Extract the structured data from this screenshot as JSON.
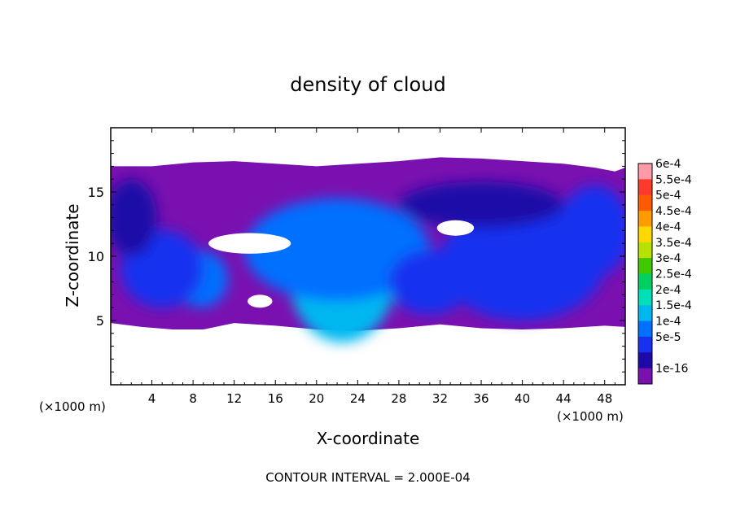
{
  "chart_data": {
    "type": "heatmap",
    "title": "density of cloud",
    "xlabel": "X-coordinate",
    "ylabel": "Z-coordinate",
    "x_unit": "(×1000 m)",
    "x_unit_right": "(×1000 m)",
    "xlim": [
      0,
      50
    ],
    "ylim": [
      0,
      20
    ],
    "x_ticks": [
      4,
      8,
      12,
      16,
      20,
      24,
      28,
      32,
      36,
      40,
      44,
      48
    ],
    "y_ticks": [
      5,
      10,
      15
    ],
    "footer": "CONTOUR INTERVAL = 2.000E-04",
    "colorbar": {
      "labels": [
        "6e-4",
        "5.5e-4",
        "5e-4",
        "4.5e-4",
        "4e-4",
        "3.5e-4",
        "3e-4",
        "2.5e-4",
        "2e-4",
        "1.5e-4",
        "1e-4",
        "5e-5",
        "1e-16"
      ],
      "colors": [
        "#ff9aa6",
        "#ff3a2a",
        "#ff5a00",
        "#ff9a00",
        "#ffd800",
        "#b8e000",
        "#40c800",
        "#00d060",
        "#00e0b8",
        "#00b8f0",
        "#0070ff",
        "#1830f0",
        "#1c0aa8",
        "#7a10b0"
      ]
    },
    "cloud_band": {
      "base_z": 4.5,
      "top_z": 17
    },
    "top_contour": [
      [
        0,
        17
      ],
      [
        4,
        17
      ],
      [
        8,
        17.3
      ],
      [
        12,
        17.4
      ],
      [
        16,
        17.2
      ],
      [
        20,
        17
      ],
      [
        24,
        17.2
      ],
      [
        28,
        17.4
      ],
      [
        32,
        17.7
      ],
      [
        36,
        17.6
      ],
      [
        40,
        17.4
      ],
      [
        44,
        17.2
      ],
      [
        47,
        16.9
      ],
      [
        49,
        16.6
      ],
      [
        50,
        16.9
      ]
    ],
    "bottom_contour": [
      [
        0,
        4.8
      ],
      [
        3,
        4.5
      ],
      [
        6,
        4.3
      ],
      [
        9,
        4.3
      ],
      [
        12,
        4.8
      ],
      [
        16,
        4.6
      ],
      [
        20,
        4.3
      ],
      [
        24,
        4.2
      ],
      [
        28,
        4.4
      ],
      [
        32,
        4.7
      ],
      [
        36,
        4.4
      ],
      [
        40,
        4.3
      ],
      [
        44,
        4.4
      ],
      [
        48,
        4.6
      ],
      [
        50,
        4.5
      ]
    ],
    "cores": [
      {
        "x": 22.5,
        "z": 8.5,
        "rx": 5.2,
        "rz": 5.2,
        "level": "2e-4"
      },
      {
        "x": 22,
        "z": 10.5,
        "rx": 9,
        "rz": 4,
        "level": "1.5e-4"
      },
      {
        "x": 8.8,
        "z": 8.2,
        "rx": 2.6,
        "rz": 2.2,
        "level": "1.5e-4"
      },
      {
        "x": 40,
        "z": 9.5,
        "rx": 8,
        "rz": 4.5,
        "level": "1e-4"
      },
      {
        "x": 47,
        "z": 12,
        "rx": 3.5,
        "rz": 3.5,
        "level": "1e-4"
      },
      {
        "x": 5,
        "z": 9,
        "rx": 4,
        "rz": 3,
        "level": "1e-4"
      },
      {
        "x": 31,
        "z": 8,
        "rx": 4,
        "rz": 2.5,
        "level": "1e-4"
      },
      {
        "x": 36,
        "z": 14,
        "rx": 8,
        "rz": 1.8,
        "level": "5e-5"
      },
      {
        "x": 2,
        "z": 13,
        "rx": 2.5,
        "rz": 3,
        "level": "5e-5"
      }
    ],
    "clear_regions": [
      {
        "x": 13.5,
        "z": 11,
        "rx": 4,
        "rz": 0.8
      },
      {
        "x": 33.5,
        "z": 12.2,
        "rx": 1.8,
        "rz": 0.6
      },
      {
        "x": 14.5,
        "z": 6.5,
        "rx": 1.2,
        "rz": 0.5
      }
    ]
  }
}
